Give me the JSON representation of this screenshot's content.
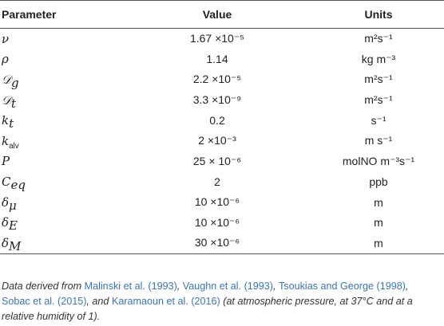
{
  "headers": {
    "parameter": "Parameter",
    "value": "Value",
    "units": "Units"
  },
  "rows": [
    {
      "name": "nu",
      "value": "1.67 ×10⁻⁵",
      "unit": "m²s⁻¹"
    },
    {
      "name": "rho",
      "value": "1.14",
      "unit": "kg m⁻³"
    },
    {
      "name": "Dg",
      "value": "2.2 ×10⁻⁵",
      "unit": "m²s⁻¹"
    },
    {
      "name": "Dt",
      "value": "3.3 ×10⁻⁹",
      "unit": "m²s⁻¹"
    },
    {
      "name": "kt",
      "value": "0.2",
      "unit": "s⁻¹"
    },
    {
      "name": "kalv",
      "value": "2 ×10⁻³",
      "unit": "m s⁻¹"
    },
    {
      "name": "P",
      "value": "25 × 10⁻⁶",
      "unit": "molNO m⁻³s⁻¹"
    },
    {
      "name": "Ceq",
      "value": "2",
      "unit": "ppb"
    },
    {
      "name": "delta_mu",
      "value": "10 ×10⁻⁶",
      "unit": "m"
    },
    {
      "name": "delta_E",
      "value": "10 ×10⁻⁶",
      "unit": "m"
    },
    {
      "name": "delta_M",
      "value": "30 ×10⁻⁶",
      "unit": "m"
    }
  ],
  "note": {
    "prefix": "Data derived from ",
    "ref1": "Malinski et al. (1993)",
    "sep1": ", ",
    "ref2": "Vaughn et al. (1993)",
    "sep2": ", ",
    "ref3": "Tsoukias and George (1998)",
    "sep3": ",",
    "ref4": "Sobac et al. (2015)",
    "sep4": ", and ",
    "ref5": "Karamaoun et al. (2016)",
    "suffix": " (at atmospheric pressure, at 37°C and at a relative humidity of 1)."
  }
}
